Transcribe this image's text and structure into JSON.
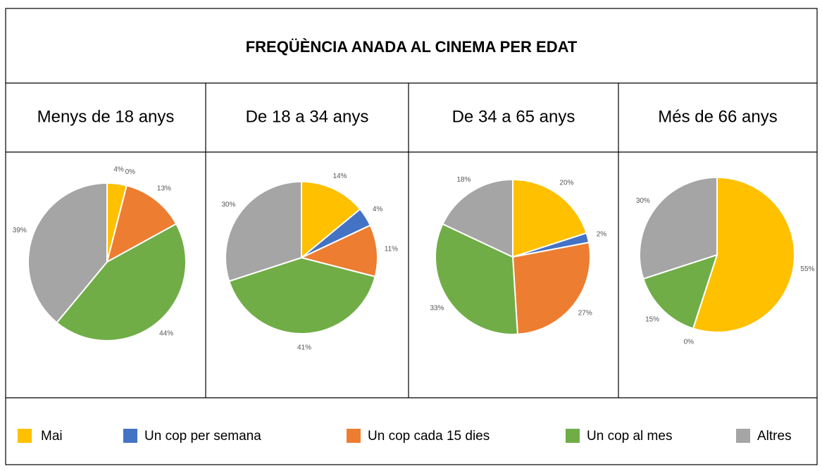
{
  "title": "FREQÜÈNCIA ANADA AL CINEMA PER EDAT",
  "legend": {
    "categories": [
      "Mai",
      "Un cop per semana",
      "Un cop cada 15 dies",
      "Un cop al mes",
      "Altres"
    ],
    "colors": [
      "#ffc000",
      "#4472c4",
      "#ed7d31",
      "#70ad47",
      "#a5a5a5"
    ]
  },
  "chart_data": [
    {
      "type": "pie",
      "title": "Menys de 18 anys",
      "values": [
        4,
        0,
        13,
        44,
        39
      ],
      "value_labels": [
        "4%",
        "0%",
        "13%",
        "44%",
        "39%"
      ]
    },
    {
      "type": "pie",
      "title": "De 18 a 34 anys",
      "values": [
        14,
        4,
        11,
        41,
        30
      ],
      "value_labels": [
        "14%",
        "4%",
        "11%",
        "41%",
        "30%"
      ]
    },
    {
      "type": "pie",
      "title": "De 34 a 65 anys",
      "values": [
        20,
        2,
        27,
        33,
        18
      ],
      "value_labels": [
        "20%",
        "2%",
        "27%",
        "33%",
        "18%"
      ]
    },
    {
      "type": "pie",
      "title": "Més de 66 anys",
      "values": [
        55,
        null,
        0,
        15,
        30
      ],
      "value_labels": [
        "55%",
        null,
        "0%",
        "15%",
        "30%"
      ]
    }
  ]
}
